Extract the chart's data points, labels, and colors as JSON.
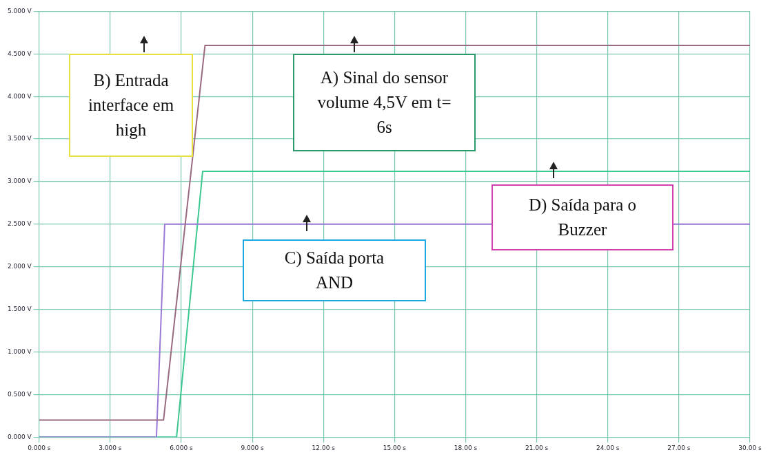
{
  "chart_data": {
    "type": "line",
    "xlim": [
      0,
      30
    ],
    "ylim": [
      0,
      5
    ],
    "xticks": [
      {
        "value": 0,
        "label": "0.000 s"
      },
      {
        "value": 3,
        "label": "3.000 s"
      },
      {
        "value": 6,
        "label": "6.000 s"
      },
      {
        "value": 9,
        "label": "9.000 s"
      },
      {
        "value": 12,
        "label": "12.00 s"
      },
      {
        "value": 15,
        "label": "15.00 s"
      },
      {
        "value": 18,
        "label": "18.00 s"
      },
      {
        "value": 21,
        "label": "21.00 s"
      },
      {
        "value": 24,
        "label": "24.00 s"
      },
      {
        "value": 27,
        "label": "27.00 s"
      },
      {
        "value": 30,
        "label": "30.00 s"
      }
    ],
    "yticks": [
      {
        "value": 0,
        "label": "0.000 V"
      },
      {
        "value": 0.5,
        "label": "0.500 V"
      },
      {
        "value": 1,
        "label": "1.000 V"
      },
      {
        "value": 1.5,
        "label": "1.500 V"
      },
      {
        "value": 2,
        "label": "2.000 V"
      },
      {
        "value": 2.5,
        "label": "2.500 V"
      },
      {
        "value": 3,
        "label": "3.000 V"
      },
      {
        "value": 3.5,
        "label": "3.500 V"
      },
      {
        "value": 4,
        "label": "4.000 V"
      },
      {
        "value": 4.5,
        "label": "4.500 V"
      },
      {
        "value": 5,
        "label": "5.000 V"
      }
    ],
    "series": [
      {
        "color": "#9a6a80",
        "x": [
          0,
          5.25,
          7.0,
          30
        ],
        "values": [
          0.2,
          0.2,
          4.6,
          4.6
        ]
      },
      {
        "color": "#9a7ad8",
        "x": [
          0,
          4.95,
          5.3,
          30
        ],
        "values": [
          0,
          0,
          2.5,
          2.5
        ]
      },
      {
        "color": "#3cc890",
        "x": [
          0,
          5.8,
          6.9,
          30
        ],
        "values": [
          0,
          0,
          3.12,
          3.12
        ]
      }
    ],
    "annotations": [
      {
        "text": "A) Sinal do sensor volume 4,5V em t= 6s",
        "x": 13.3,
        "y": 4.6
      },
      "B) Entrada interface em high",
      {
        "text": "C) Saída porta AND",
        "x": 11.3,
        "y": 2.5
      },
      {
        "text": "D) Saída para o Buzzer",
        "x": 21.7,
        "y": 3.12
      }
    ],
    "grid": true,
    "legend": false,
    "marker": "none",
    "line_style": "solid"
  }
}
